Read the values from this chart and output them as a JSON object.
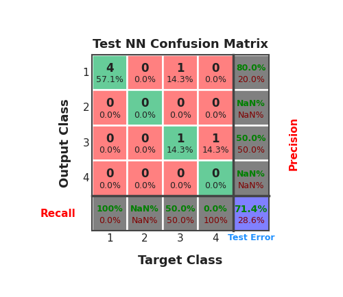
{
  "title": "Test NN Confusion Matrix",
  "xlabel": "Target Class",
  "ylabel": "Output Class",
  "n_classes": 4,
  "class_labels": [
    "1",
    "2",
    "3",
    "4"
  ],
  "matrix_counts": [
    [
      4,
      0,
      1,
      0
    ],
    [
      0,
      0,
      0,
      0
    ],
    [
      0,
      0,
      1,
      1
    ],
    [
      0,
      0,
      0,
      0
    ]
  ],
  "matrix_pcts": [
    [
      "57.1%",
      "0.0%",
      "14.3%",
      "0.0%"
    ],
    [
      "0.0%",
      "0.0%",
      "0.0%",
      "0.0%"
    ],
    [
      "0.0%",
      "0.0%",
      "14.3%",
      "14.3%"
    ],
    [
      "0.0%",
      "0.0%",
      "0.0%",
      "0.0%"
    ]
  ],
  "cell_colors": [
    [
      "green_diag",
      "red",
      "red",
      "red"
    ],
    [
      "red",
      "green_diag",
      "red",
      "red"
    ],
    [
      "red",
      "red",
      "green_diag",
      "red"
    ],
    [
      "red",
      "red",
      "red",
      "green_diag"
    ]
  ],
  "precision_top": [
    "80.0%",
    "NaN%",
    "50.0%",
    "NaN%"
  ],
  "precision_bot": [
    "20.0%",
    "NaN%",
    "50.0%",
    "NaN%"
  ],
  "recall_top": [
    "100%",
    "NaN%",
    "50.0%",
    "0.0%"
  ],
  "recall_bot": [
    "0.0%",
    "NaN%",
    "50.0%",
    "100%"
  ],
  "overall_top": "71.4%",
  "overall_bot": "28.6%",
  "color_green_diag": "#66CC99",
  "color_red": "#FF8080",
  "color_sidebar": "#808080",
  "color_overall": "#8080FF",
  "color_green_text": "#008000",
  "color_red_text": "#800000",
  "color_dark": "#222222",
  "recall_label_color": "#FF0000",
  "precision_label_color": "#FF0000",
  "test_error_color": "#1E90FF"
}
